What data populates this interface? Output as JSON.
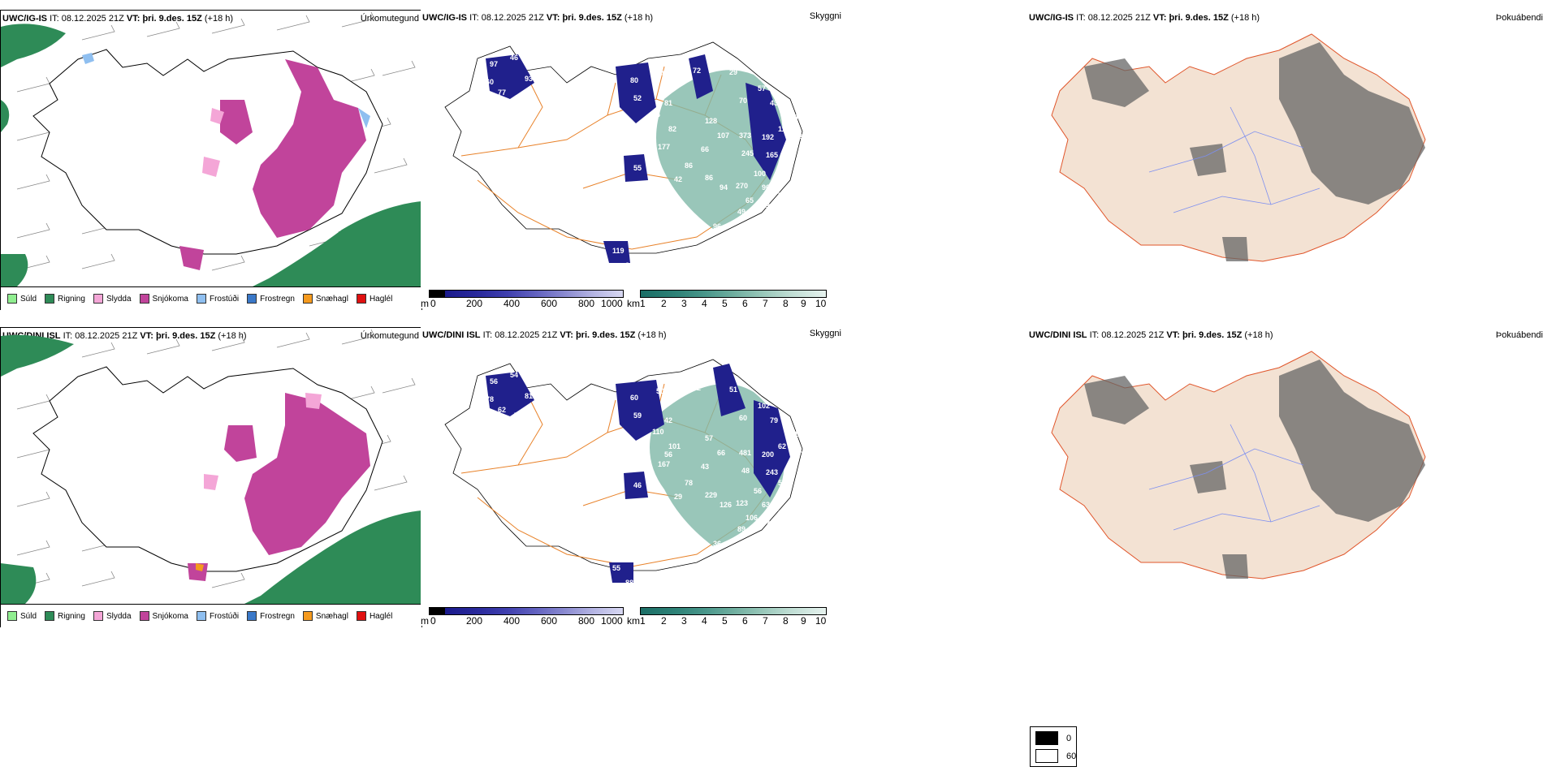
{
  "rows": [
    {
      "model": "UWC/IG-IS",
      "it_label": "IT:",
      "it": "08.12.2025 21Z",
      "vt_label": "VT:",
      "vt": "þri. 9.des. 15Z",
      "lead": "(+18 h)",
      "precip_title": "Úrkomutegund",
      "vis_title": "Skyggni",
      "fog_title": "Þokuábendi",
      "labels": [
        "97",
        "46",
        "60",
        "77",
        "103",
        "93",
        "104",
        "80",
        "44",
        "72",
        "29",
        "52",
        "81",
        "64",
        "82",
        "177",
        "128",
        "107",
        "66",
        "70",
        "57",
        "43",
        "373",
        "192",
        "111",
        "42",
        "45",
        "245",
        "165",
        "98",
        "86",
        "86",
        "94",
        "270",
        "100",
        "96",
        "38",
        "65",
        "49",
        "30",
        "53",
        "96",
        "55",
        "119",
        "31",
        "42"
      ]
    },
    {
      "model": "UWC/DINI ISL",
      "it_label": "IT:",
      "it": "08.12.2025 21Z",
      "vt_label": "VT:",
      "vt": "þri. 9.des. 15Z",
      "lead": "(+18 h)",
      "precip_title": "Úrkomutegund",
      "vis_title": "Skyggni",
      "fog_title": "Þokuábendi",
      "labels": [
        "56",
        "54",
        "78",
        "62",
        "75",
        "81",
        "85",
        "60",
        "50",
        "52",
        "51",
        "59",
        "42",
        "110",
        "101",
        "167",
        "57",
        "66",
        "43",
        "60",
        "102",
        "79",
        "481",
        "200",
        "62",
        "182",
        "77",
        "48",
        "243",
        "57",
        "78",
        "229",
        "126",
        "123",
        "56",
        "63",
        "52",
        "106",
        "89",
        "75",
        "129",
        "36",
        "46",
        "55",
        "88",
        "29",
        "56"
      ]
    }
  ],
  "legend": [
    "Súld",
    "Rigning",
    "Slydda",
    "Snjókoma",
    "Frostúði",
    "Frostregn",
    "Snæhagl",
    "Haglél"
  ],
  "legend_colors": [
    "#90ee90",
    "#2e8b57",
    "#f4a6d7",
    "#c1449b",
    "#8fbff0",
    "#3a78c8",
    "#f59a1e",
    "#e01010"
  ],
  "cloudbase_bar": {
    "unit": "m",
    "ticks": [
      "0",
      "200",
      "400",
      "600",
      "800",
      "1000"
    ]
  },
  "visibility_bar": {
    "unit": "km",
    "ticks": [
      "1",
      "2",
      "3",
      "4",
      "5",
      "6",
      "7",
      "8",
      "9",
      "10"
    ]
  },
  "fog_key": [
    "0",
    "60"
  ]
}
